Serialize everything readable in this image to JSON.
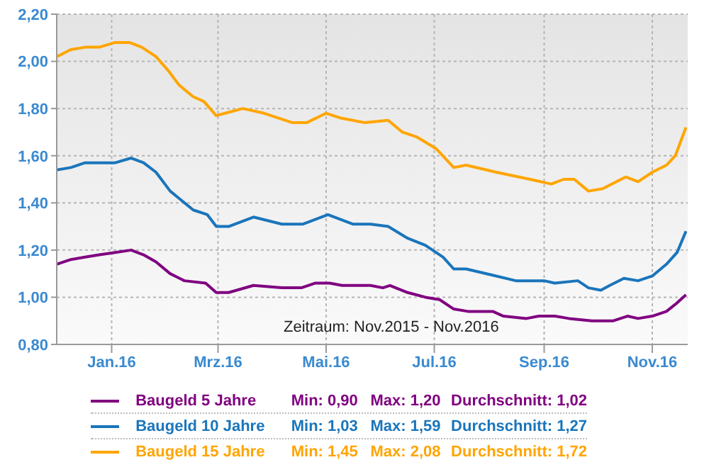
{
  "chart_data": {
    "type": "line",
    "xlim": [
      "2015-12-01",
      "2016-11-21"
    ],
    "ylim": [
      0.8,
      2.2
    ],
    "xticks": [
      {
        "value": "2016-01-01",
        "label": "Jan.16"
      },
      {
        "value": "2016-03-01",
        "label": "Mrz.16"
      },
      {
        "value": "2016-05-01",
        "label": "Mai.16"
      },
      {
        "value": "2016-07-01",
        "label": "Jul.16"
      },
      {
        "value": "2016-09-01",
        "label": "Sep.16"
      },
      {
        "value": "2016-11-01",
        "label": "Nov.16"
      }
    ],
    "yticks": [
      {
        "value": 0.8,
        "label": "0,80"
      },
      {
        "value": 1.0,
        "label": "1,00"
      },
      {
        "value": 1.2,
        "label": "1,20"
      },
      {
        "value": 1.4,
        "label": "1,40"
      },
      {
        "value": 1.6,
        "label": "1,60"
      },
      {
        "value": 1.8,
        "label": "1,80"
      },
      {
        "value": 2.0,
        "label": "2,00"
      },
      {
        "value": 2.2,
        "label": "2,20"
      }
    ],
    "grid": true,
    "legend": "bottom",
    "marker": "none",
    "line_style": "solid",
    "series": [
      {
        "name": "Baugeld 5 Jahre",
        "color": "#800080",
        "x": [
          "2015-12-01",
          "2015-12-09",
          "2015-12-17",
          "2015-12-25",
          "2016-01-03",
          "2016-01-12",
          "2016-01-19",
          "2016-01-26",
          "2016-02-03",
          "2016-02-11",
          "2016-02-23",
          "2016-02-29",
          "2016-03-07",
          "2016-03-21",
          "2016-04-06",
          "2016-04-17",
          "2016-04-25",
          "2016-05-03",
          "2016-05-10",
          "2016-05-26",
          "2016-06-02",
          "2016-06-06",
          "2016-06-16",
          "2016-06-26",
          "2016-07-04",
          "2016-07-12",
          "2016-07-20",
          "2016-08-03",
          "2016-08-09",
          "2016-08-22",
          "2016-08-29",
          "2016-09-07",
          "2016-09-15",
          "2016-09-28",
          "2016-10-10",
          "2016-10-18",
          "2016-10-24",
          "2016-11-01",
          "2016-11-09",
          "2016-11-14",
          "2016-11-20"
        ],
        "values": [
          1.14,
          1.16,
          1.17,
          1.18,
          1.19,
          1.2,
          1.18,
          1.15,
          1.1,
          1.07,
          1.06,
          1.02,
          1.02,
          1.05,
          1.04,
          1.04,
          1.06,
          1.06,
          1.05,
          1.05,
          1.04,
          1.05,
          1.02,
          1.0,
          0.99,
          0.95,
          0.94,
          0.94,
          0.92,
          0.91,
          0.92,
          0.92,
          0.91,
          0.9,
          0.9,
          0.92,
          0.91,
          0.92,
          0.94,
          0.97,
          1.01
        ]
      },
      {
        "name": "Baugeld 10 Jahre",
        "color": "#1a75bb",
        "x": [
          "2015-12-01",
          "2015-12-09",
          "2015-12-17",
          "2015-12-25",
          "2016-01-03",
          "2016-01-12",
          "2016-01-19",
          "2016-01-26",
          "2016-02-03",
          "2016-02-16",
          "2016-02-24",
          "2016-02-29",
          "2016-03-07",
          "2016-03-21",
          "2016-04-06",
          "2016-04-18",
          "2016-05-02",
          "2016-05-16",
          "2016-05-26",
          "2016-06-05",
          "2016-06-16",
          "2016-06-26",
          "2016-07-06",
          "2016-07-12",
          "2016-07-19",
          "2016-08-05",
          "2016-08-16",
          "2016-09-01",
          "2016-09-07",
          "2016-09-20",
          "2016-09-26",
          "2016-10-03",
          "2016-10-08",
          "2016-10-16",
          "2016-10-24",
          "2016-11-01",
          "2016-11-09",
          "2016-11-15",
          "2016-11-20"
        ],
        "values": [
          1.54,
          1.55,
          1.57,
          1.57,
          1.57,
          1.59,
          1.57,
          1.53,
          1.45,
          1.37,
          1.35,
          1.3,
          1.3,
          1.34,
          1.31,
          1.31,
          1.35,
          1.31,
          1.31,
          1.3,
          1.25,
          1.22,
          1.17,
          1.12,
          1.12,
          1.09,
          1.07,
          1.07,
          1.06,
          1.07,
          1.04,
          1.03,
          1.05,
          1.08,
          1.07,
          1.09,
          1.14,
          1.19,
          1.28
        ]
      },
      {
        "name": "Baugeld 15 Jahre",
        "color": "#ffa500",
        "x": [
          "2015-12-01",
          "2015-12-09",
          "2015-12-17",
          "2015-12-25",
          "2016-01-03",
          "2016-01-11",
          "2016-01-18",
          "2016-01-26",
          "2016-02-02",
          "2016-02-08",
          "2016-02-16",
          "2016-02-22",
          "2016-02-29",
          "2016-03-05",
          "2016-03-15",
          "2016-03-27",
          "2016-04-12",
          "2016-04-20",
          "2016-05-01",
          "2016-05-09",
          "2016-05-16",
          "2016-05-23",
          "2016-06-05",
          "2016-06-13",
          "2016-06-21",
          "2016-07-02",
          "2016-07-12",
          "2016-07-19",
          "2016-08-05",
          "2016-08-24",
          "2016-09-05",
          "2016-09-12",
          "2016-09-18",
          "2016-09-26",
          "2016-10-04",
          "2016-10-17",
          "2016-10-24",
          "2016-11-01",
          "2016-11-09",
          "2016-11-14",
          "2016-11-20"
        ],
        "values": [
          2.02,
          2.05,
          2.06,
          2.06,
          2.08,
          2.08,
          2.06,
          2.02,
          1.96,
          1.9,
          1.85,
          1.83,
          1.77,
          1.78,
          1.8,
          1.78,
          1.74,
          1.74,
          1.78,
          1.76,
          1.75,
          1.74,
          1.75,
          1.7,
          1.68,
          1.63,
          1.55,
          1.56,
          1.53,
          1.5,
          1.48,
          1.5,
          1.5,
          1.45,
          1.46,
          1.51,
          1.49,
          1.53,
          1.56,
          1.6,
          1.72
        ]
      }
    ],
    "annotations": [
      "Zeitraum: Nov.2015 - Nov.2016",
      "Min: 0,90",
      "Max: 1,20",
      "Durchschnitt: 1,02",
      "Min: 1,03",
      "Max: 1,59",
      "Durchschnitt: 1,27",
      "Min: 1,45",
      "Max: 2,08",
      "Durchschnitt: 1,72"
    ]
  }
}
